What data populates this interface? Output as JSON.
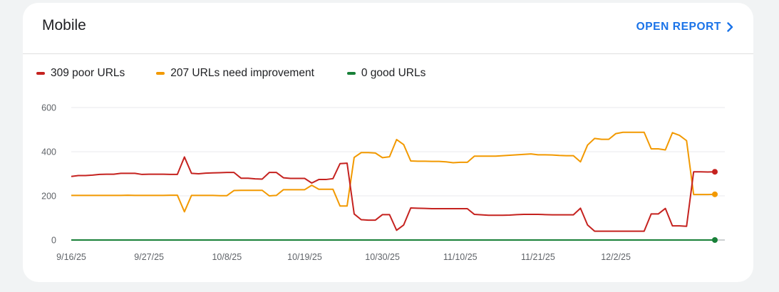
{
  "card": {
    "title": "Mobile",
    "open_report_label": "OPEN REPORT"
  },
  "legend": [
    {
      "label": "309 poor URLs",
      "color": "#c5221f"
    },
    {
      "label": "207 URLs need improvement",
      "color": "#f29900"
    },
    {
      "label": "0 good URLs",
      "color": "#188038"
    }
  ],
  "icons": {
    "open_report": "chevron-right-icon"
  },
  "chart_data": {
    "type": "line",
    "ylim": [
      0,
      600
    ],
    "y_ticks": [
      0,
      200,
      400,
      600
    ],
    "x_labels": [
      "9/16/25",
      "9/27/25",
      "10/8/25",
      "10/19/25",
      "10/30/25",
      "11/10/25",
      "11/21/25",
      "12/2/25"
    ],
    "x_start": "9/16/25",
    "x_end": "12/11/25",
    "grid": true,
    "legend_position": "top-left",
    "series": [
      {
        "name": "309 poor URLs",
        "color": "#c5221f",
        "values": [
          288,
          292,
          292,
          294,
          297,
          298,
          298,
          302,
          302,
          302,
          297,
          298,
          298,
          298,
          297,
          297,
          376,
          302,
          300,
          303,
          304,
          305,
          306,
          306,
          280,
          280,
          277,
          276,
          306,
          306,
          282,
          279,
          279,
          279,
          258,
          274,
          274,
          278,
          346,
          348,
          118,
          92,
          90,
          90,
          115,
          115,
          44,
          68,
          145,
          144,
          143,
          142,
          142,
          142,
          142,
          142,
          142,
          116,
          114,
          112,
          112,
          112,
          113,
          115,
          116,
          116,
          116,
          115,
          114,
          114,
          114,
          114,
          144,
          68,
          40,
          40,
          40,
          40,
          40,
          40,
          40,
          40,
          118,
          118,
          143,
          64,
          64,
          62,
          309,
          309,
          308,
          309
        ]
      },
      {
        "name": "207 URLs need improvement",
        "color": "#f29900",
        "values": [
          202,
          202,
          202,
          202,
          202,
          202,
          202,
          202,
          203,
          202,
          202,
          202,
          202,
          202,
          203,
          203,
          128,
          202,
          202,
          202,
          202,
          201,
          201,
          224,
          225,
          225,
          225,
          225,
          200,
          202,
          228,
          228,
          228,
          228,
          248,
          230,
          230,
          230,
          154,
          154,
          374,
          396,
          396,
          394,
          373,
          377,
          455,
          432,
          358,
          357,
          357,
          356,
          356,
          354,
          350,
          352,
          352,
          380,
          380,
          380,
          380,
          382,
          384,
          386,
          388,
          390,
          386,
          386,
          385,
          383,
          382,
          382,
          354,
          430,
          460,
          456,
          456,
          482,
          488,
          488,
          488,
          488,
          413,
          413,
          408,
          486,
          474,
          450,
          206,
          206,
          206,
          207
        ]
      },
      {
        "name": "0 good URLs",
        "color": "#188038",
        "values": [
          0,
          0,
          0,
          0,
          0,
          0,
          0,
          0,
          0,
          0,
          0,
          0,
          0,
          0,
          0,
          0,
          0,
          0,
          0,
          0,
          0,
          0,
          0,
          0,
          0,
          0,
          0,
          0,
          0,
          0,
          0,
          0,
          0,
          0,
          0,
          0,
          0,
          0,
          0,
          0,
          0,
          0,
          0,
          0,
          0,
          0,
          0,
          0,
          0,
          0,
          0,
          0,
          0,
          0,
          0,
          0,
          0,
          0,
          0,
          0,
          0,
          0,
          0,
          0,
          0,
          0,
          0,
          0,
          0,
          0,
          0,
          0,
          0,
          0,
          0,
          0,
          0,
          0,
          0,
          0,
          0,
          0,
          0,
          0,
          0,
          0,
          0,
          0,
          0,
          0,
          0,
          0
        ]
      }
    ]
  }
}
